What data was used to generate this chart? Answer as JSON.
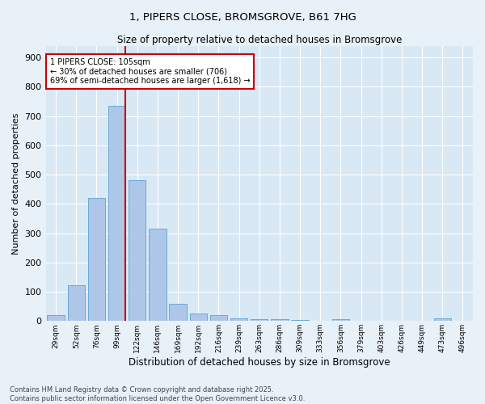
{
  "title": "1, PIPERS CLOSE, BROMSGROVE, B61 7HG",
  "subtitle": "Size of property relative to detached houses in Bromsgrove",
  "xlabel": "Distribution of detached houses by size in Bromsgrove",
  "ylabel": "Number of detached properties",
  "categories": [
    "29sqm",
    "52sqm",
    "76sqm",
    "99sqm",
    "122sqm",
    "146sqm",
    "169sqm",
    "192sqm",
    "216sqm",
    "239sqm",
    "263sqm",
    "286sqm",
    "309sqm",
    "333sqm",
    "356sqm",
    "379sqm",
    "403sqm",
    "426sqm",
    "449sqm",
    "473sqm",
    "496sqm"
  ],
  "values": [
    20,
    122,
    420,
    735,
    480,
    315,
    60,
    25,
    20,
    8,
    5,
    5,
    3,
    0,
    5,
    0,
    0,
    0,
    0,
    8,
    0
  ],
  "bar_color": "#aec6e8",
  "bar_edge_color": "#6aaad4",
  "vline_bin": 3,
  "vline_color": "#cc0000",
  "annotation_line1": "1 PIPERS CLOSE: 105sqm",
  "annotation_line2": "← 30% of detached houses are smaller (706)",
  "annotation_line3": "69% of semi-detached houses are larger (1,618) →",
  "annotation_box_color": "#ffffff",
  "annotation_box_edge": "#cc0000",
  "footer": "Contains HM Land Registry data © Crown copyright and database right 2025.\nContains public sector information licensed under the Open Government Licence v3.0.",
  "ylim": [
    0,
    940
  ],
  "yticks": [
    0,
    100,
    200,
    300,
    400,
    500,
    600,
    700,
    800,
    900
  ],
  "bg_color": "#e8f0f8",
  "plot_bg_color": "#d8e8f5"
}
